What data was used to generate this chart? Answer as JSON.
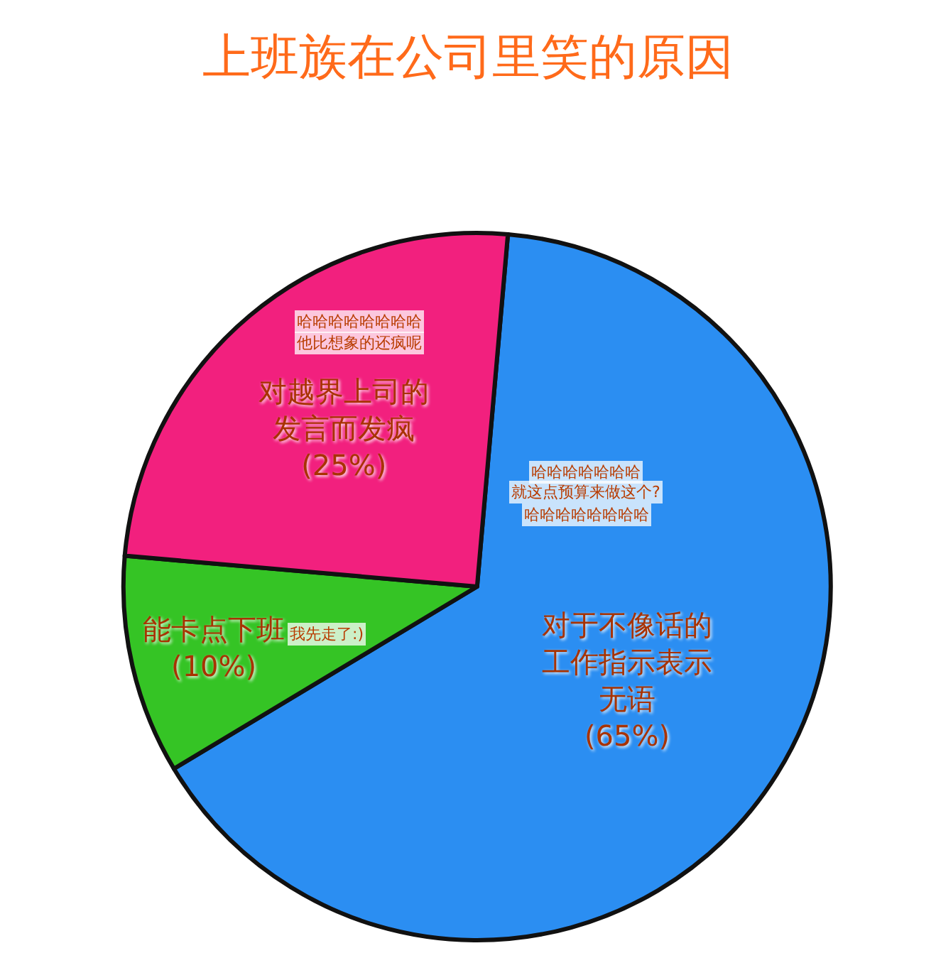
{
  "chart_data": {
    "type": "pie",
    "title": "上班族在公司里笑的原因",
    "categories": [
      "对于不像话的工作指示表示无语",
      "能卡点下班",
      "对越界上司的发言而发疯"
    ],
    "values": [
      65,
      10,
      25
    ],
    "value_labels": [
      "(65%)",
      "(10%)",
      "(25%)"
    ],
    "colors": [
      "#2b8ef2",
      "#35c425",
      "#f2207e"
    ],
    "annotations": [
      "哈哈哈哈哈哈哈",
      "就这点预算来做这个?",
      "哈哈哈哈哈哈哈哈",
      "我先走了:)",
      "哈哈哈哈哈哈哈哈",
      "他比想象的还疯呢"
    ]
  }
}
